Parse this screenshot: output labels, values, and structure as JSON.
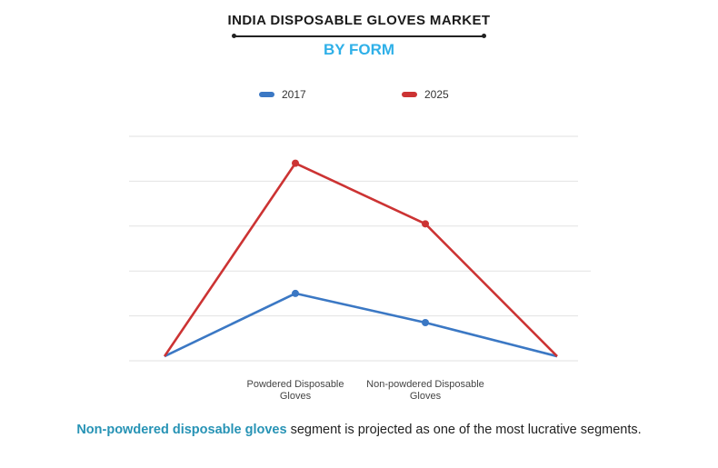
{
  "title": "INDIA DISPOSABLE GLOVES MARKET",
  "subtitle": "BY FORM",
  "caption": {
    "highlight": "Non-powdered disposable gloves",
    "rest": " segment is projected as one of the most lucrative segments."
  },
  "colors": {
    "series_2017": "#3b78c4",
    "series_2025": "#cc3333",
    "subtitle": "#2fb0e8",
    "highlight": "#2793b5"
  },
  "chart_data": {
    "type": "line",
    "categories": [
      "",
      "Powdered Disposable Gloves",
      "Non-powdered Disposable Gloves",
      ""
    ],
    "tick_labels": [
      {
        "line1": "Powdered Disposable",
        "line2": "Gloves"
      },
      {
        "line1": "Non-powdered Disposable",
        "line2": "Gloves"
      }
    ],
    "series": [
      {
        "name": "2017",
        "values": [
          0.1,
          1.5,
          0.85,
          0.1
        ],
        "color": "#3b78c4"
      },
      {
        "name": "2025",
        "values": [
          0.1,
          4.4,
          3.05,
          0.1
        ],
        "color": "#cc3333"
      }
    ],
    "ylim": [
      0,
      5
    ],
    "grid": true,
    "legend": "top-center"
  }
}
